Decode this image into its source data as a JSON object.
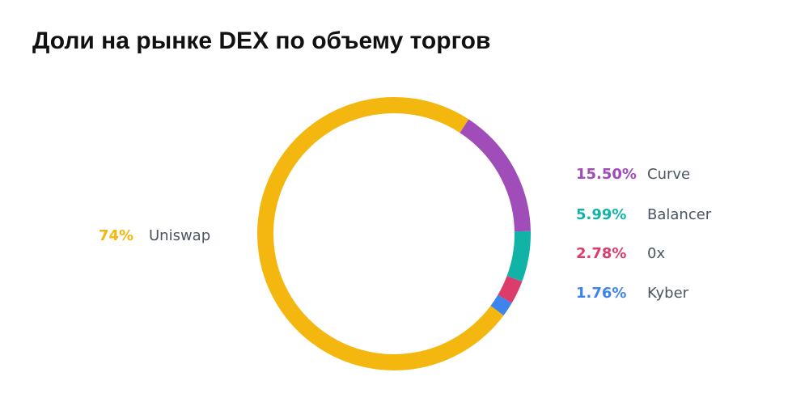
{
  "title": "Доли на рынке DEX по объему торгов",
  "chart_data": {
    "type": "pie",
    "donut": true,
    "title": "Доли на рынке DEX по объему торгов",
    "slices": [
      {
        "name": "Uniswap",
        "value": 74,
        "label": "74%",
        "color": "#f4b70f"
      },
      {
        "name": "Curve",
        "value": 15.5,
        "label": "15.50%",
        "color": "#a04cb9"
      },
      {
        "name": "Balancer",
        "value": 5.99,
        "label": "5.99%",
        "color": "#12b3a7"
      },
      {
        "name": "0x",
        "value": 2.78,
        "label": "2.78%",
        "color": "#dc3c6c"
      },
      {
        "name": "Kyber",
        "value": 1.76,
        "label": "1.76%",
        "color": "#3d84ee"
      }
    ]
  }
}
